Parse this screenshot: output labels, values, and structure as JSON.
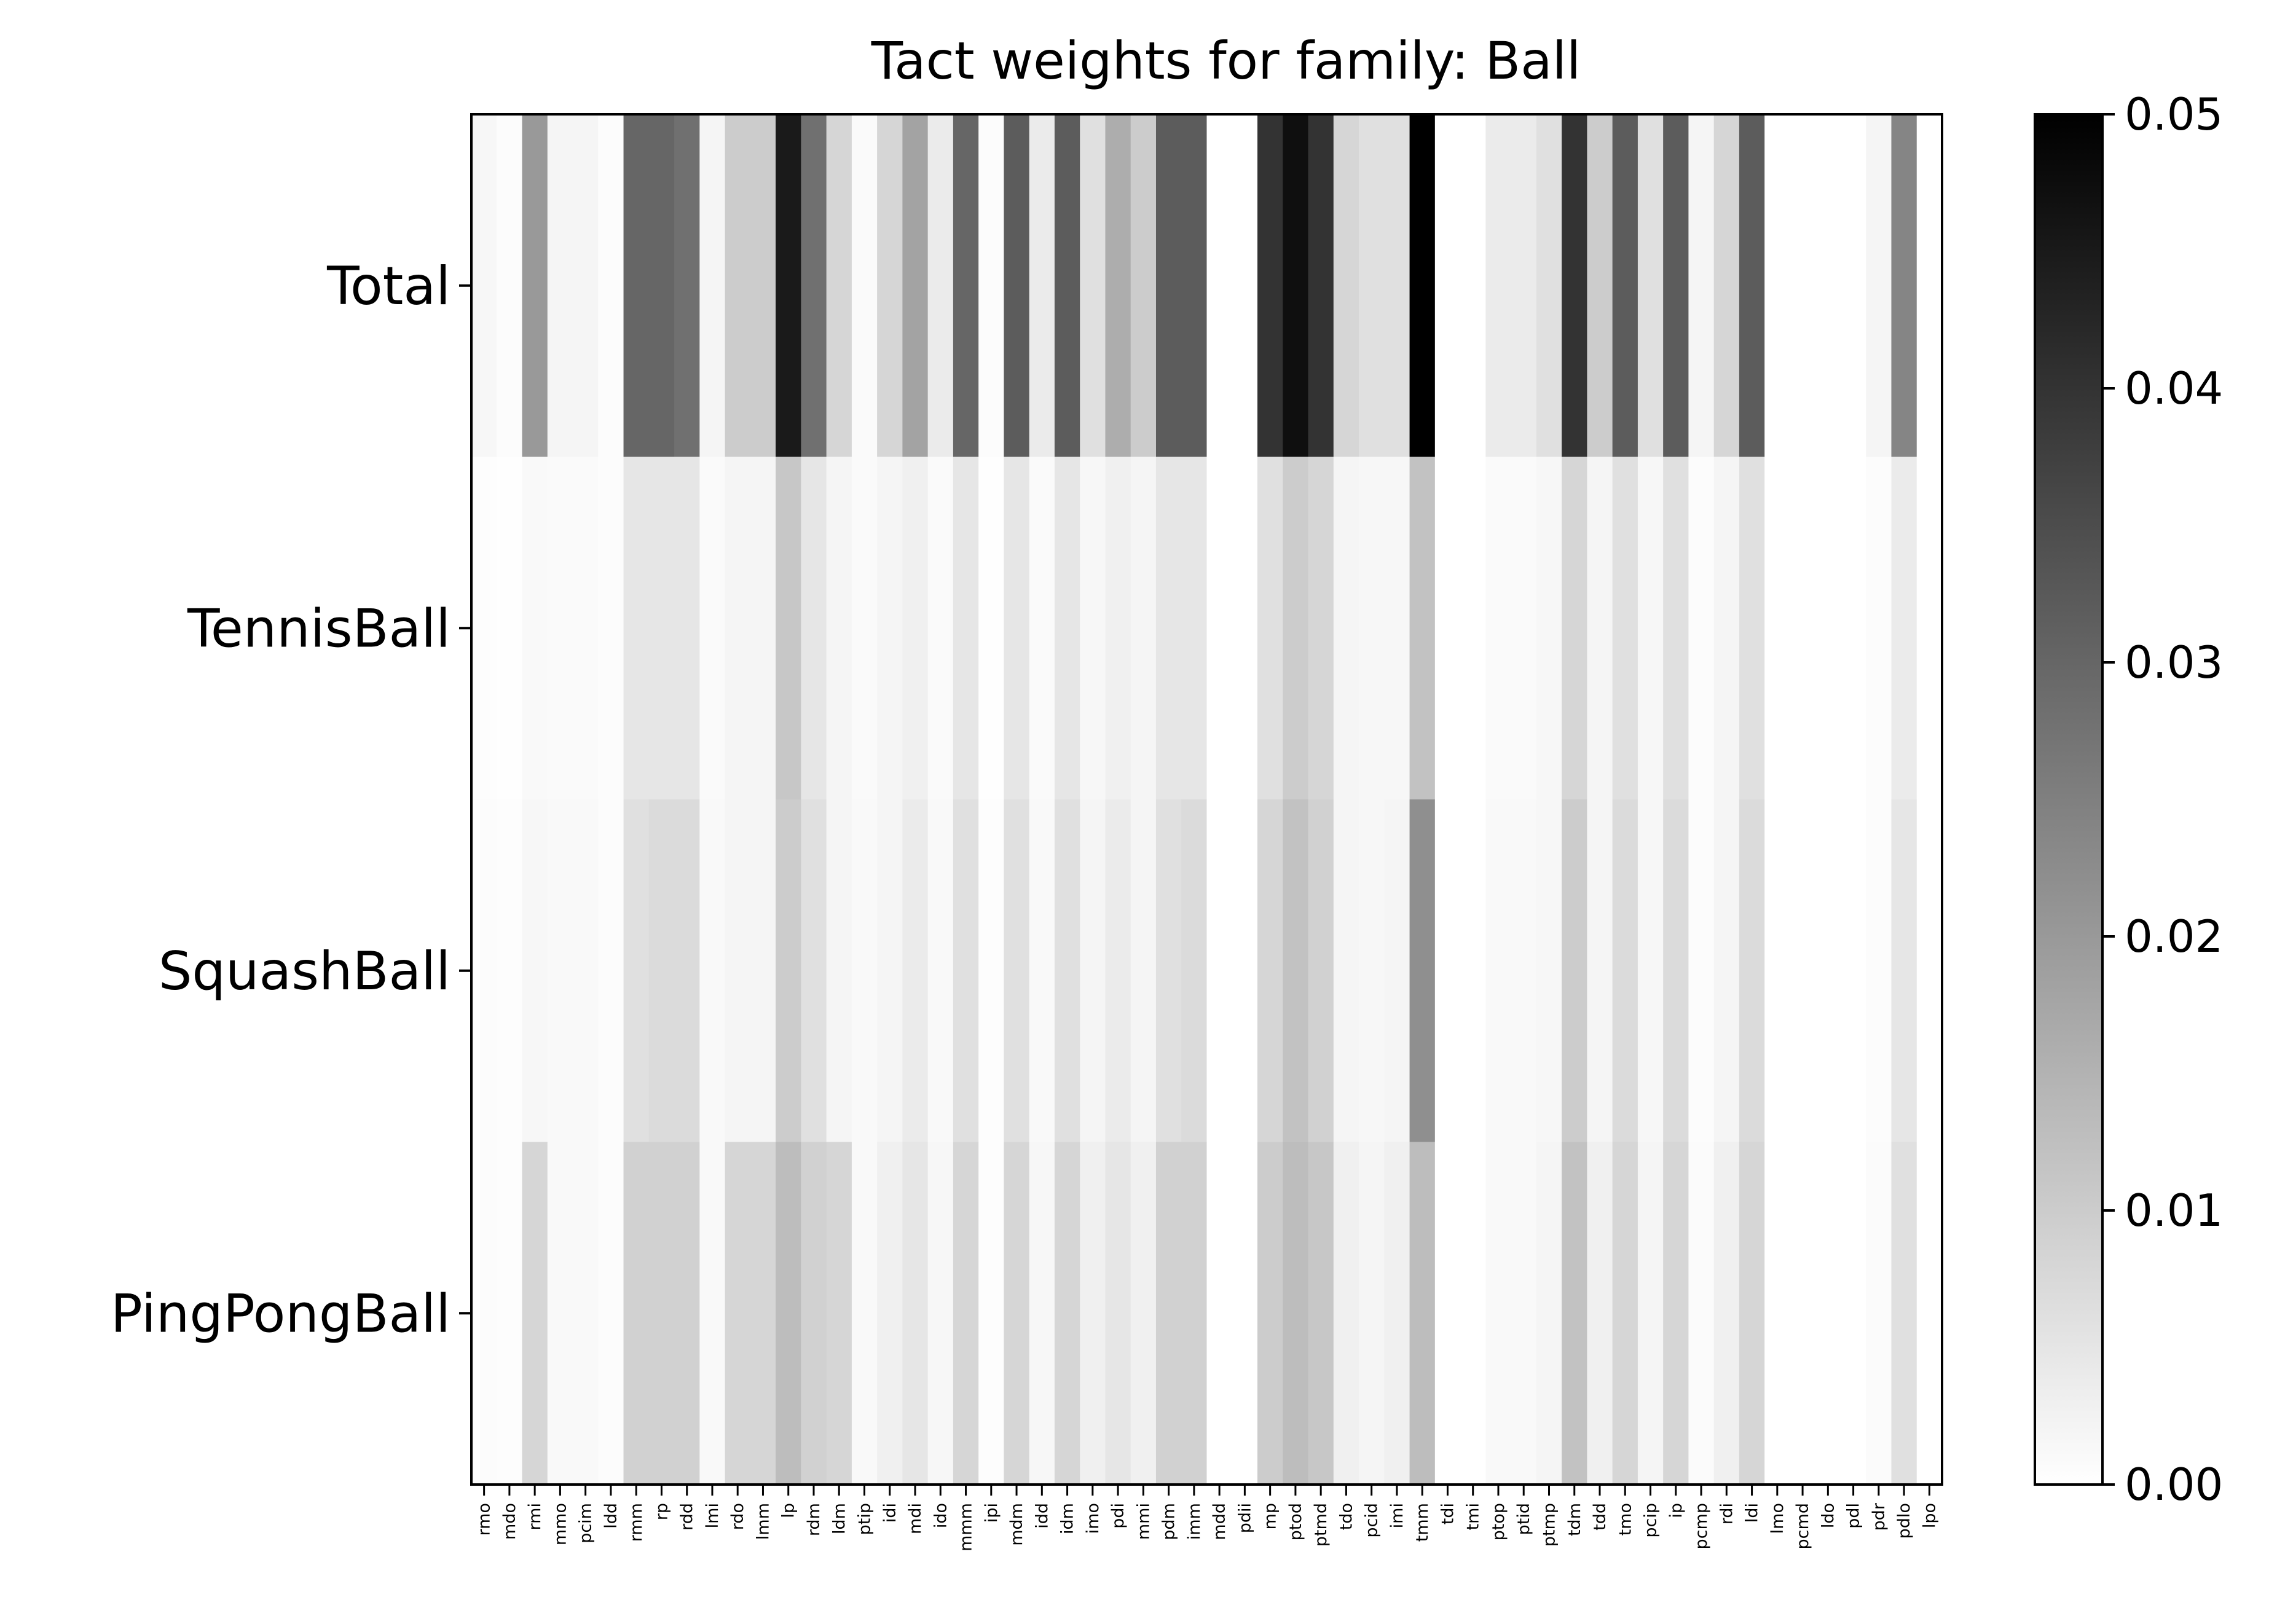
{
  "chart_data": {
    "type": "heatmap",
    "title": "Tact weights for family: Ball",
    "rows": [
      "Total",
      "TennisBall",
      "SquashBall",
      "PingPongBall"
    ],
    "columns": [
      "rmo",
      "mdo",
      "rmi",
      "mmo",
      "pcim",
      "ldd",
      "rmm",
      "rp",
      "rdd",
      "lmi",
      "rdo",
      "lmm",
      "lp",
      "rdm",
      "ldm",
      "ptip",
      "idi",
      "mdi",
      "ido",
      "mmm",
      "ipi",
      "mdm",
      "idd",
      "idm",
      "imo",
      "pdi",
      "mmi",
      "pdm",
      "imm",
      "mdd",
      "pdii",
      "mp",
      "ptod",
      "ptmd",
      "tdo",
      "pcid",
      "imi",
      "tmm",
      "tdi",
      "tmi",
      "ptop",
      "ptid",
      "ptmp",
      "tdm",
      "tdd",
      "tmo",
      "pcip",
      "ip",
      "pcmp",
      "rdi",
      "ldi",
      "lmo",
      "pcmd",
      "ldo",
      "pdl",
      "pdr",
      "pdlo",
      "lpo"
    ],
    "values": [
      [
        0.0015,
        0.0005,
        0.02,
        0.002,
        0.002,
        0.0005,
        0.03,
        0.03,
        0.028,
        0.002,
        0.01,
        0.01,
        0.045,
        0.028,
        0.008,
        0.001,
        0.008,
        0.018,
        0.004,
        0.03,
        0.0005,
        0.032,
        0.004,
        0.032,
        0.006,
        0.016,
        0.01,
        0.032,
        0.032,
        0.0,
        0.0,
        0.04,
        0.047,
        0.04,
        0.008,
        0.006,
        0.006,
        0.05,
        0.0,
        0.0,
        0.004,
        0.004,
        0.006,
        0.04,
        0.01,
        0.032,
        0.006,
        0.032,
        0.002,
        0.008,
        0.032,
        0.0,
        0.0,
        0.0,
        0.0,
        0.002,
        0.024,
        0.0
      ],
      [
        0.0003,
        0.0002,
        0.0012,
        0.001,
        0.001,
        0.0005,
        0.005,
        0.005,
        0.005,
        0.001,
        0.002,
        0.002,
        0.011,
        0.005,
        0.002,
        0.001,
        0.002,
        0.003,
        0.001,
        0.005,
        0.0002,
        0.005,
        0.001,
        0.005,
        0.0015,
        0.003,
        0.002,
        0.005,
        0.005,
        0.0,
        0.0,
        0.006,
        0.01,
        0.008,
        0.002,
        0.0015,
        0.0015,
        0.012,
        0.0,
        0.0,
        0.001,
        0.001,
        0.0015,
        0.008,
        0.002,
        0.006,
        0.0015,
        0.006,
        0.0005,
        0.002,
        0.006,
        0.0,
        0.0,
        0.0,
        0.0,
        0.0005,
        0.004,
        0.0
      ],
      [
        0.0005,
        0.0003,
        0.0015,
        0.0012,
        0.0012,
        0.0005,
        0.006,
        0.007,
        0.007,
        0.0012,
        0.002,
        0.002,
        0.01,
        0.006,
        0.002,
        0.0012,
        0.002,
        0.004,
        0.0012,
        0.006,
        0.0003,
        0.006,
        0.0012,
        0.006,
        0.002,
        0.004,
        0.002,
        0.006,
        0.007,
        0.0,
        0.0,
        0.008,
        0.012,
        0.009,
        0.002,
        0.0015,
        0.002,
        0.022,
        0.0,
        0.0,
        0.0012,
        0.0012,
        0.0015,
        0.01,
        0.002,
        0.007,
        0.0015,
        0.007,
        0.0005,
        0.002,
        0.007,
        0.0,
        0.0,
        0.0,
        0.0,
        0.0005,
        0.005,
        0.0
      ],
      [
        0.0005,
        0.0003,
        0.008,
        0.0012,
        0.0012,
        0.0005,
        0.009,
        0.009,
        0.009,
        0.0012,
        0.008,
        0.008,
        0.013,
        0.009,
        0.008,
        0.0012,
        0.003,
        0.005,
        0.0015,
        0.008,
        0.0003,
        0.008,
        0.0015,
        0.008,
        0.003,
        0.005,
        0.003,
        0.009,
        0.009,
        0.0,
        0.0,
        0.01,
        0.013,
        0.011,
        0.003,
        0.002,
        0.003,
        0.013,
        0.0,
        0.0,
        0.0012,
        0.0012,
        0.002,
        0.012,
        0.003,
        0.008,
        0.002,
        0.008,
        0.0008,
        0.003,
        0.008,
        0.0,
        0.0,
        0.0,
        0.0,
        0.0008,
        0.006,
        0.0
      ]
    ],
    "vmin": 0.0,
    "vmax": 0.05,
    "colormap": "Greys",
    "colorbar": {
      "ticks": [
        0.0,
        0.01,
        0.02,
        0.03,
        0.04,
        0.05
      ],
      "tick_labels": [
        "0.00",
        "0.01",
        "0.02",
        "0.03",
        "0.04",
        "0.05"
      ]
    },
    "grid": false
  }
}
